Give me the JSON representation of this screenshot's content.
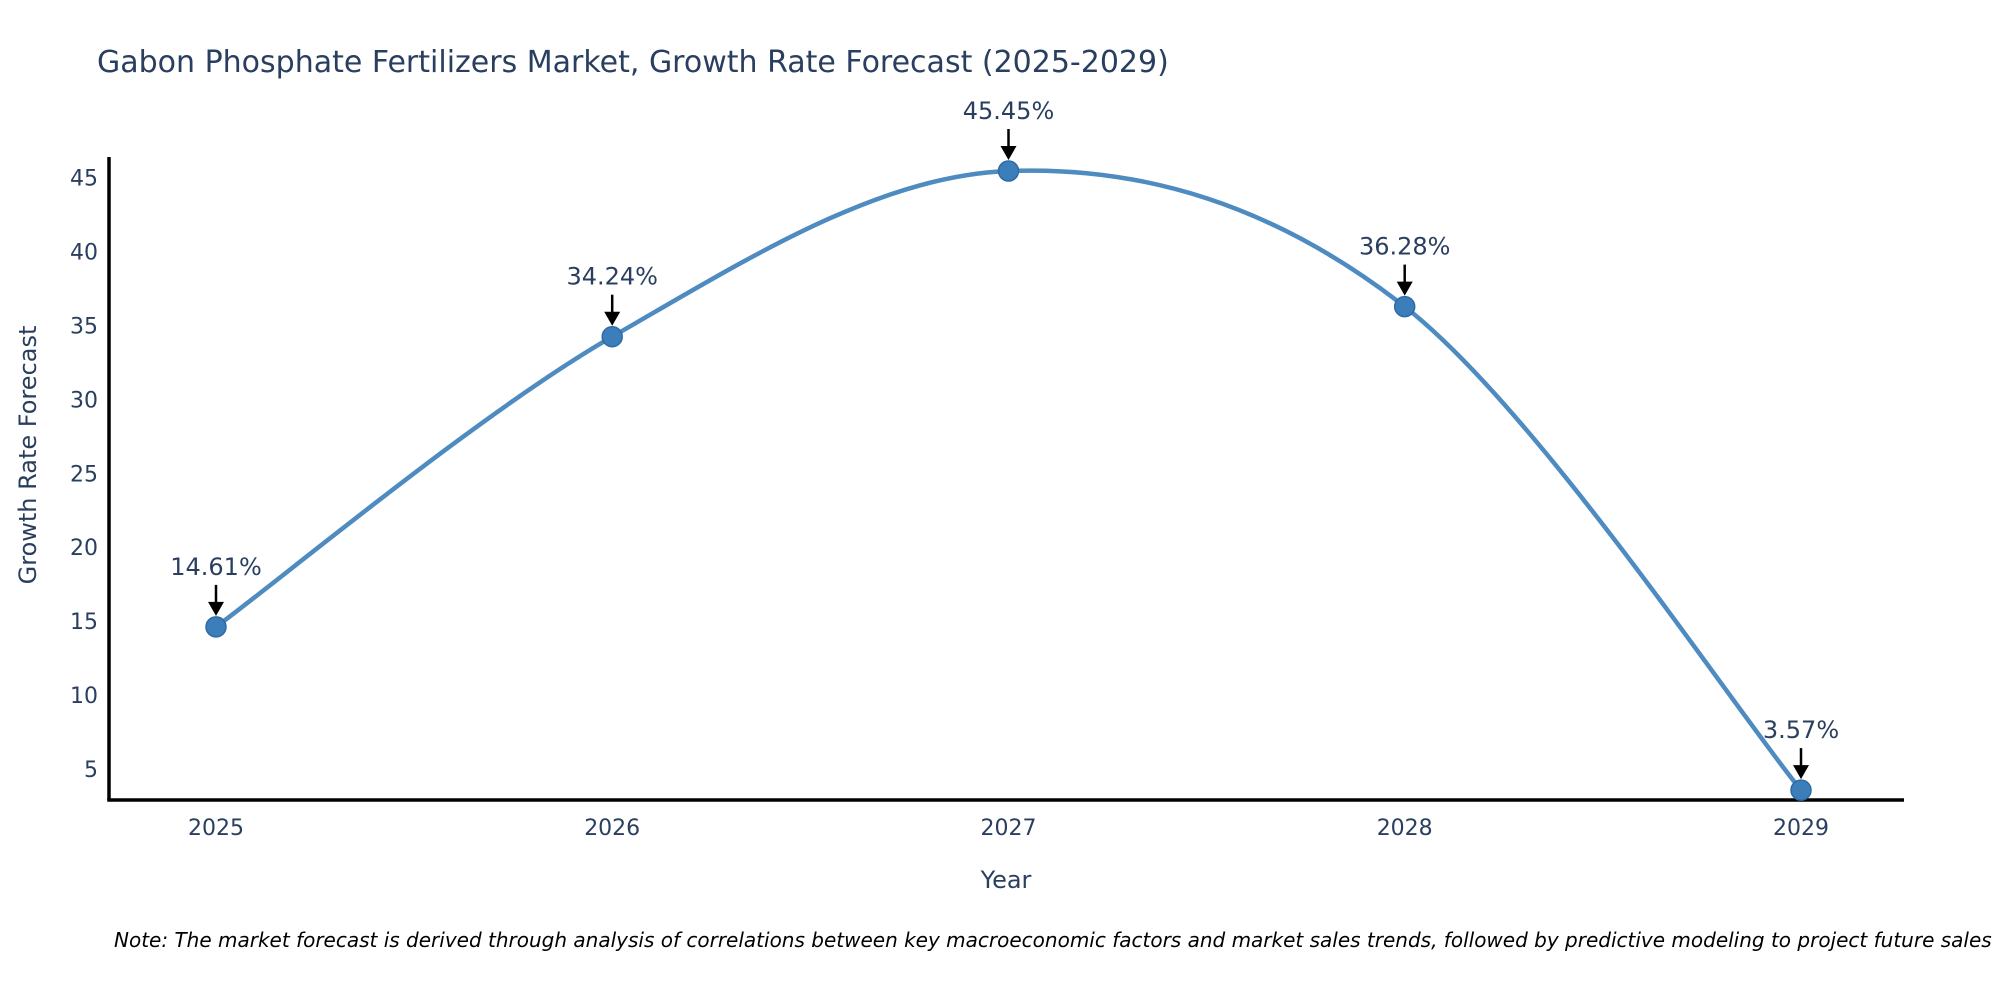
{
  "note": "Note: The market forecast is derived through analysis of correlations between key macroeconomic factors and market sales trends, followed by predictive modeling to project future sales",
  "colors": {
    "line": "#4e8bc0",
    "marker_fill": "#3c7eba",
    "marker_edge": "#2e6aa5",
    "axis": "#000000",
    "arrow": "#000000",
    "text": "#2a3f5f",
    "note_text": "#000000",
    "background": "#ffffff"
  },
  "chart_data": {
    "type": "line",
    "title": "Gabon Phosphate Fertilizers Market, Growth Rate Forecast (2025-2029)",
    "x": [
      2025,
      2026,
      2027,
      2028,
      2029
    ],
    "y": [
      14.61,
      34.24,
      45.45,
      36.28,
      3.57
    ],
    "point_labels": [
      "14.61%",
      "34.24%",
      "45.45%",
      "36.28%",
      "3.57%"
    ],
    "series_name": "Growth Rate Forecast",
    "xlabel": "Year",
    "ylabel": "Growth Rate Forecast",
    "xticks": [
      "2025",
      "2026",
      "2027",
      "2028",
      "2029"
    ],
    "xtick_values": [
      2025,
      2026,
      2027,
      2028,
      2029
    ],
    "yticks": [
      5,
      10,
      15,
      20,
      25,
      30,
      35,
      40,
      45
    ],
    "xlim": [
      2024.73,
      2029.26
    ],
    "ylim": [
      2.9,
      46.4
    ],
    "grid": false,
    "line_shape": "spline",
    "markers": true,
    "annotation_style": "arrow-down",
    "legend": "none"
  }
}
